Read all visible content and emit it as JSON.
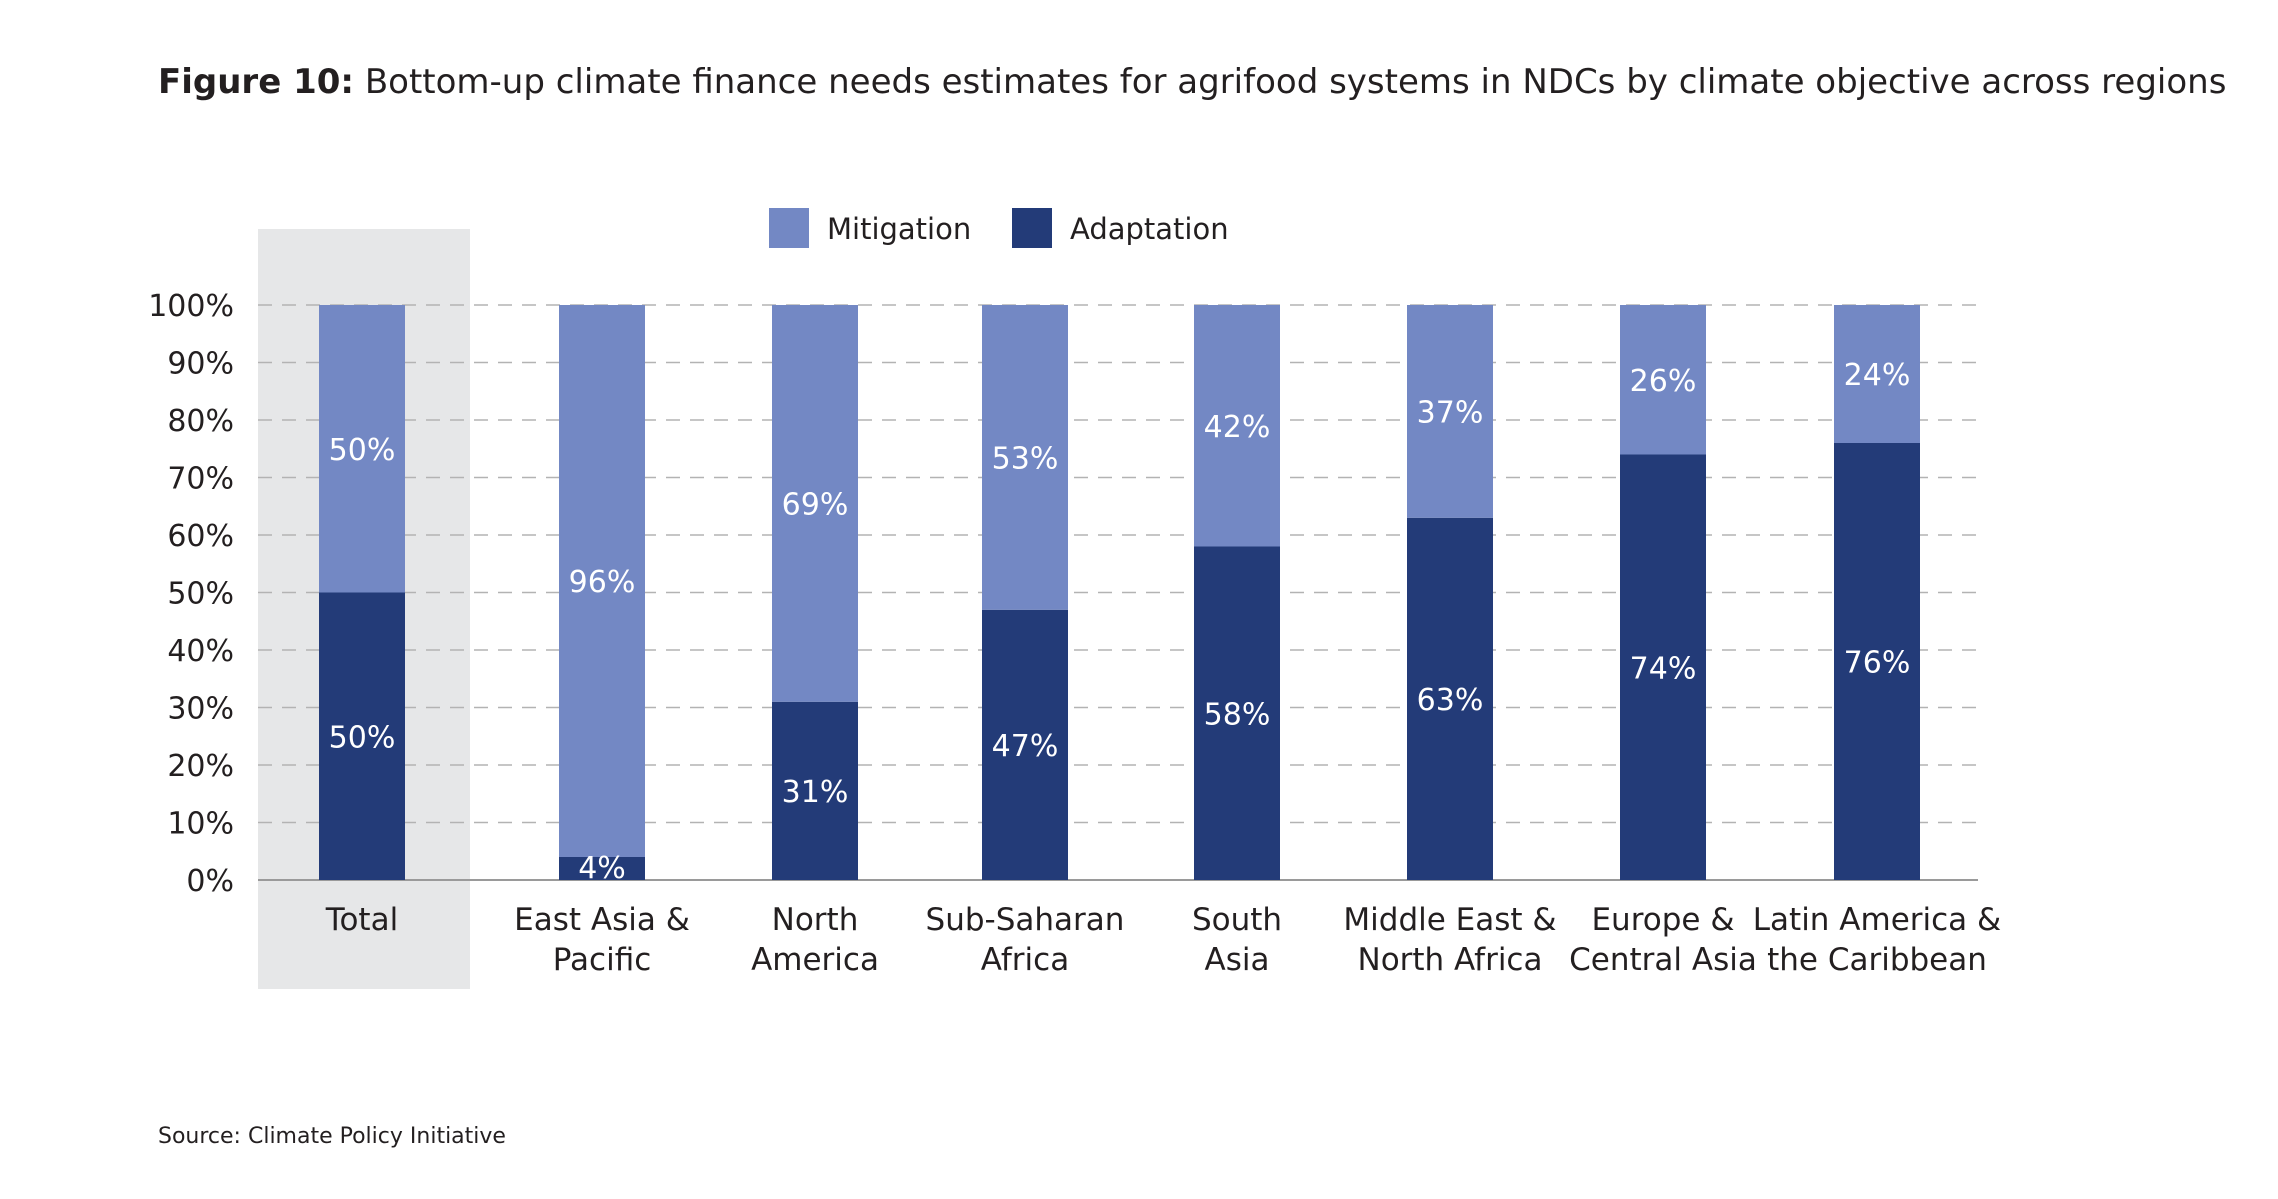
{
  "figure": {
    "label": "Figure 10:",
    "title": "Bottom-up climate finance needs estimates for agrifood systems in NDCs by climate objective across regions"
  },
  "source": "Source: Climate Policy Initiative",
  "colors": {
    "mitigation": "#7388c4",
    "adaptation": "#233b78",
    "highlight": "#e6e7e8",
    "grid": "#b3b3b3"
  },
  "chart_data": {
    "type": "bar",
    "stacked": true,
    "orientation": "vertical",
    "title": "Bottom-up climate finance needs estimates for agrifood systems in NDCs by climate objective across regions",
    "xlabel": "",
    "ylabel": "",
    "ylim": [
      0,
      100
    ],
    "yticks": [
      "0%",
      "10%",
      "20%",
      "30%",
      "40%",
      "50%",
      "60%",
      "70%",
      "80%",
      "90%",
      "100%"
    ],
    "grid": "horizontal dashed",
    "legend_position": "top-center",
    "highlighted_category": "Total",
    "categories": [
      [
        "Total"
      ],
      [
        "East Asia &",
        "Pacific"
      ],
      [
        "North",
        "America"
      ],
      [
        "Sub-Saharan",
        "Africa"
      ],
      [
        "South",
        "Asia"
      ],
      [
        "Middle East &",
        "North Africa"
      ],
      [
        "Europe &",
        "Central Asia"
      ],
      [
        "Latin America &",
        "the Caribbean"
      ]
    ],
    "series": [
      {
        "name": "Adaptation",
        "values": [
          50,
          4,
          31,
          47,
          58,
          63,
          74,
          76
        ],
        "labels": [
          "50%",
          "4%",
          "31%",
          "47%",
          "58%",
          "63%",
          "74%",
          "76%"
        ]
      },
      {
        "name": "Mitigation",
        "values": [
          50,
          96,
          69,
          53,
          42,
          37,
          26,
          24
        ],
        "labels": [
          "50%",
          "96%",
          "69%",
          "53%",
          "42%",
          "37%",
          "26%",
          "24%"
        ]
      }
    ],
    "legend": [
      "Mitigation",
      "Adaptation"
    ]
  }
}
